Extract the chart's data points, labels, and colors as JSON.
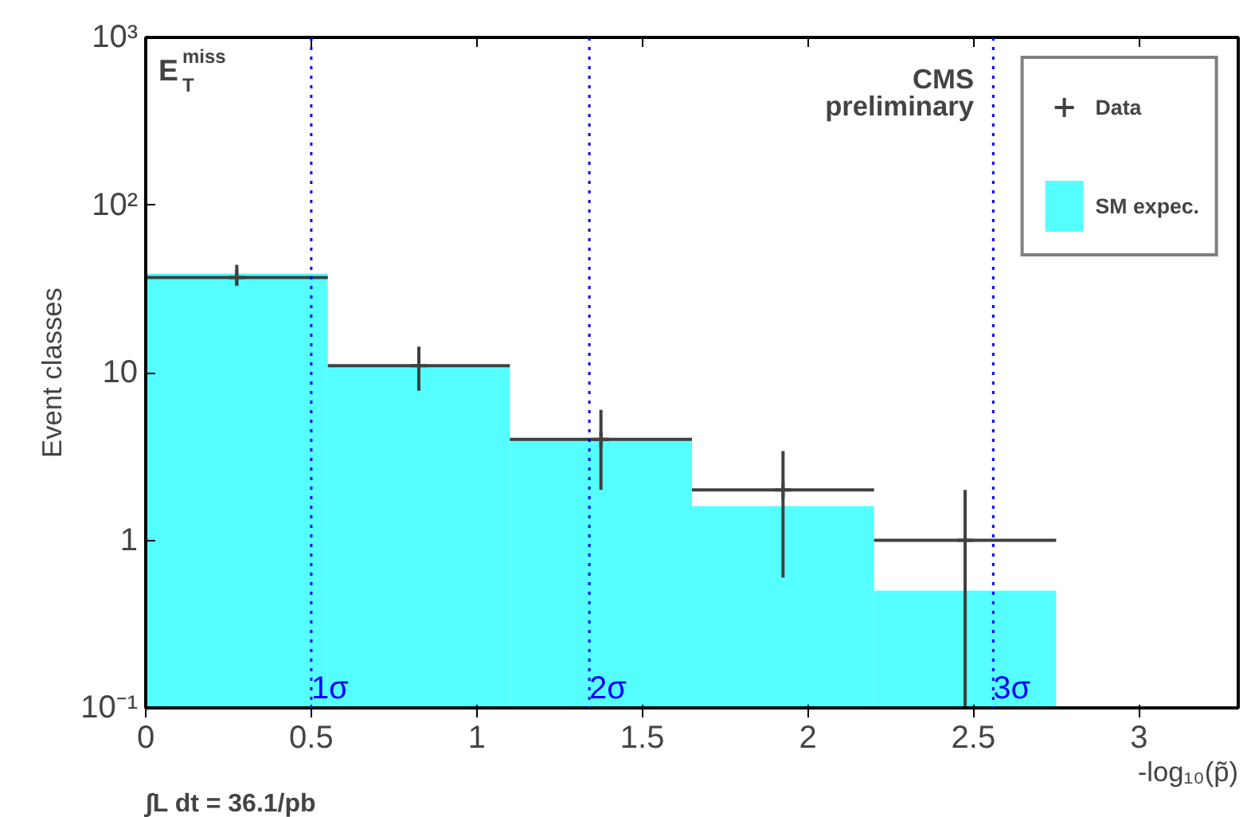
{
  "chart_data": {
    "type": "histogram",
    "ylabel": "Event classes",
    "xlabel": "-log₁₀(p̃)",
    "bins": [
      0,
      0.55,
      1.1,
      1.65,
      2.2,
      2.75
    ],
    "series": [
      {
        "name": "Data",
        "type": "scatter",
        "color": "#404040",
        "x": [
          0.275,
          0.825,
          1.375,
          1.925,
          2.475
        ],
        "values": [
          37,
          11,
          4,
          2,
          1
        ],
        "errors": [
          [
            33,
            44
          ],
          [
            7.8,
            14.3
          ],
          [
            2,
            6
          ],
          [
            0.6,
            3.4
          ],
          [
            0.1,
            2
          ]
        ],
        "xerrors": [
          0.275,
          0.275,
          0.275,
          0.275,
          0.275
        ]
      },
      {
        "name": "SM expec.",
        "color": "#55ffff",
        "values": [
          39,
          11,
          4,
          1.6,
          0.5
        ]
      }
    ],
    "xlim": [
      0,
      3.3
    ],
    "xticks": [
      0,
      0.5,
      1,
      1.5,
      2,
      2.5,
      3
    ],
    "ylim": [
      0.1,
      1000
    ],
    "yticks": [
      {
        "value": 0.1,
        "label": "10⁻¹"
      },
      1,
      10,
      {
        "value": 100,
        "label": "10²"
      },
      {
        "value": 1000,
        "label": "10³"
      }
    ],
    "log": "y",
    "grid": false,
    "legend": "top right",
    "marker": "cross",
    "ref_lines": [
      {
        "axis": "x",
        "value": 0.5,
        "label": "1σ",
        "color": "#0000ff",
        "line_style": "dotted"
      },
      {
        "axis": "x",
        "value": 1.34,
        "label": "2σ",
        "color": "#0000ff",
        "line_style": "dotted"
      },
      {
        "axis": "x",
        "value": 2.56,
        "label": "3σ",
        "color": "#0000ff",
        "line_style": "dotted"
      }
    ],
    "annotations": [
      "E$^{miss}$$_{T}$",
      "CMS",
      "preliminary",
      "∫L dt = 36.1/pb"
    ]
  }
}
